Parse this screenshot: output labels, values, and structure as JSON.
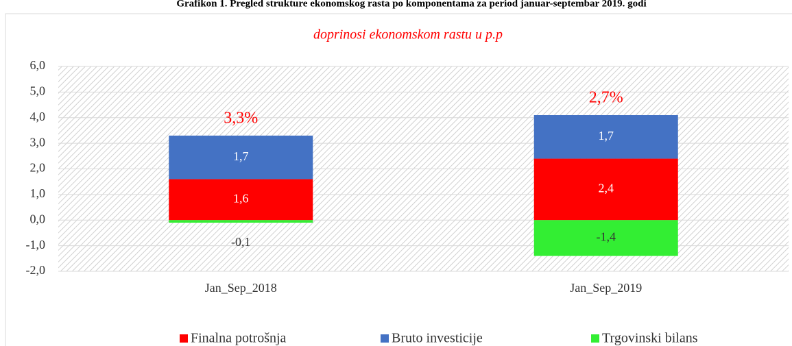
{
  "chart_data": {
    "type": "bar",
    "stacked": true,
    "title": "Grafikon 1. Pregled strukture ekonomskog rasta  po komponentama za period januar-septembar 2019. godi",
    "subtitle": "doprinosi ekonomskom rastu u p.p",
    "categories": [
      "Jan_Sep_2018",
      "Jan_Sep_2019"
    ],
    "series": [
      {
        "name": "Finalna potrošnja",
        "color": "#ff0000",
        "values": [
          1.6,
          2.4
        ],
        "value_labels": [
          "1,6",
          "2,4"
        ]
      },
      {
        "name": "Bruto investicije",
        "color": "#4472c4",
        "values": [
          1.7,
          1.7
        ],
        "value_labels": [
          "1,7",
          "1,7"
        ]
      },
      {
        "name": "Trgovinski bilans",
        "color": "#33ee33",
        "values": [
          -0.1,
          -1.4
        ],
        "value_labels": [
          "-0,1",
          "-1,4"
        ]
      }
    ],
    "annotations": [
      "3,3%",
      "2,7%"
    ],
    "ylim": [
      -2,
      6
    ],
    "yticks": [
      {
        "value": -2,
        "label": "-2,0"
      },
      {
        "value": -1,
        "label": "-1,0"
      },
      {
        "value": 0,
        "label": "0,0"
      },
      {
        "value": 1,
        "label": "1,0"
      },
      {
        "value": 2,
        "label": "2,0"
      },
      {
        "value": 3,
        "label": "3,0"
      },
      {
        "value": 4,
        "label": "4,0"
      },
      {
        "value": 5,
        "label": "5,0"
      },
      {
        "value": 6,
        "label": "6,0"
      }
    ],
    "grid": true,
    "legend": "bottom"
  }
}
